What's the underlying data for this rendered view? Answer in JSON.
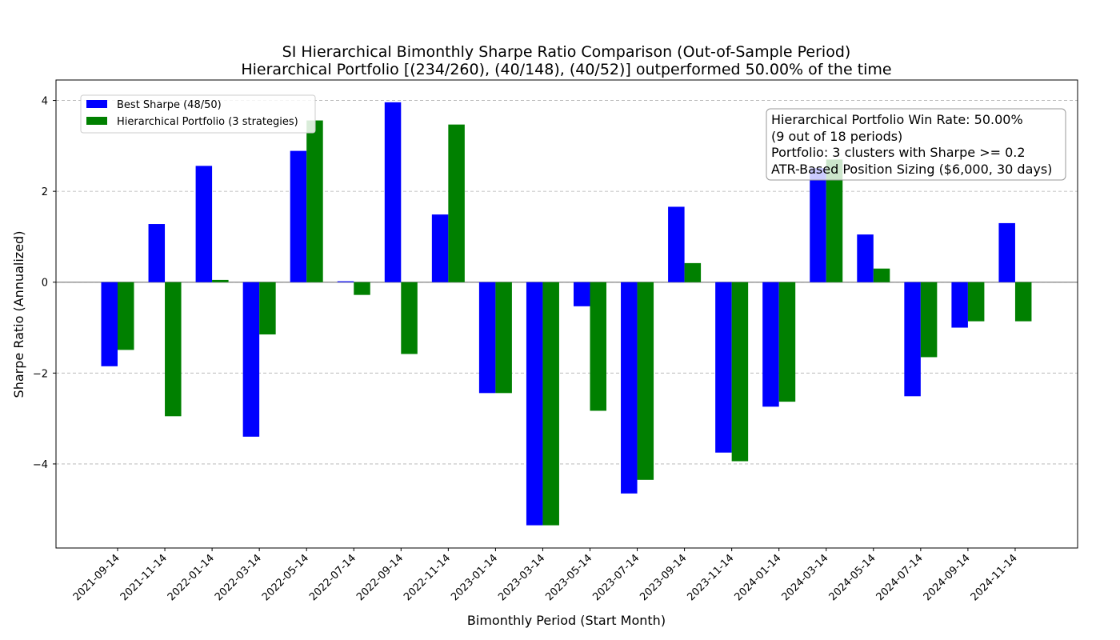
{
  "chart_data": {
    "type": "bar",
    "title": "SI Hierarchical Bimonthly Sharpe Ratio Comparison (Out-of-Sample Period)",
    "subtitle": "Hierarchical Portfolio [(234/260), (40/148), (40/52)] outperformed 50.00% of the time",
    "xlabel": "Bimonthly Period (Start Month)",
    "ylabel": "Sharpe Ratio (Annualized)",
    "ylim": [
      -5.85,
      4.45
    ],
    "yticks": [
      -4,
      -2,
      0,
      2,
      4
    ],
    "ytick_labels": [
      "−4",
      "−2",
      "0",
      "2",
      "4"
    ],
    "grid": "y-dashed",
    "legend_position": "top-left",
    "categories": [
      "2021-09-14",
      "2021-11-14",
      "2022-01-14",
      "2022-03-14",
      "2022-05-14",
      "2022-07-14",
      "2022-09-14",
      "2022-11-14",
      "2023-01-14",
      "2023-03-14",
      "2023-05-14",
      "2023-07-14",
      "2023-09-14",
      "2023-11-14",
      "2024-01-14",
      "2024-03-14",
      "2024-05-14",
      "2024-07-14",
      "2024-09-14",
      "2024-11-14"
    ],
    "series": [
      {
        "name": "Best Sharpe (48/50)",
        "color": "#0000ff",
        "values": [
          -1.85,
          1.28,
          2.56,
          -3.4,
          2.89,
          0.02,
          3.96,
          1.49,
          -2.44,
          -5.35,
          -0.53,
          -4.65,
          1.66,
          -3.75,
          -2.74,
          2.51,
          1.05,
          -2.51,
          -1.0,
          1.3
        ]
      },
      {
        "name": "Hierarchical Portfolio (3 strategies)",
        "color": "#008000",
        "values": [
          -1.49,
          -2.95,
          0.05,
          -1.15,
          3.56,
          -0.28,
          -1.58,
          3.47,
          -2.44,
          -5.35,
          -2.83,
          -4.35,
          0.42,
          -3.94,
          -2.63,
          2.7,
          0.3,
          -1.65,
          -0.86,
          -0.86
        ]
      }
    ],
    "annotation": [
      "Hierarchical Portfolio Win Rate: 50.00%",
      "(9 out of 18 periods)",
      "Portfolio: 3 clusters with Sharpe >= 0.2",
      "ATR-Based Position Sizing ($6,000, 30 days)"
    ]
  }
}
